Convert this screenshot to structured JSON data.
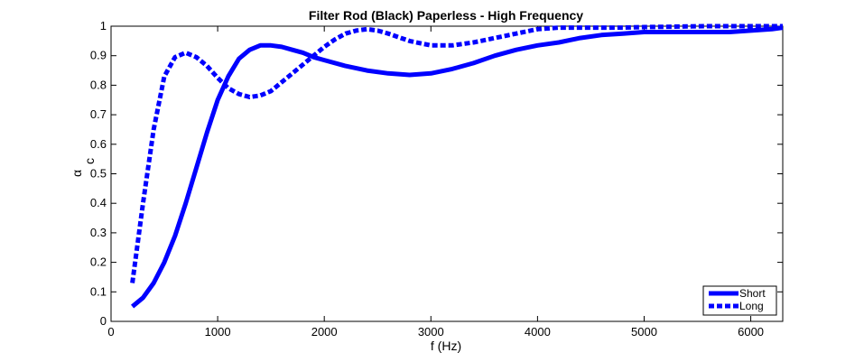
{
  "chart_data": {
    "type": "line",
    "title": "Filter Rod (Black) Paperless - High Frequency",
    "xlabel": "f (Hz)",
    "ylabel": "α",
    "ylabel_subscript": "c",
    "xlim": [
      0,
      6300
    ],
    "ylim": [
      0,
      1
    ],
    "xticks": [
      0,
      1000,
      2000,
      3000,
      4000,
      5000,
      6000
    ],
    "yticks": [
      0,
      0.1,
      0.2,
      0.3,
      0.4,
      0.5,
      0.6,
      0.7,
      0.8,
      0.9,
      1
    ],
    "grid": false,
    "legend_position": "bottom-right",
    "series": [
      {
        "name": "Short",
        "style": "solid",
        "color": "#0000ff",
        "x": [
          200,
          300,
          400,
          500,
          600,
          700,
          800,
          900,
          1000,
          1100,
          1200,
          1300,
          1400,
          1500,
          1600,
          1700,
          1800,
          1900,
          2000,
          2200,
          2400,
          2600,
          2800,
          3000,
          3200,
          3400,
          3600,
          3800,
          4000,
          4200,
          4400,
          4600,
          4800,
          5000,
          5200,
          5400,
          5600,
          5800,
          6000,
          6200,
          6300
        ],
        "y": [
          0.05,
          0.08,
          0.13,
          0.2,
          0.29,
          0.4,
          0.52,
          0.64,
          0.75,
          0.83,
          0.89,
          0.92,
          0.935,
          0.935,
          0.93,
          0.92,
          0.91,
          0.895,
          0.885,
          0.865,
          0.85,
          0.84,
          0.835,
          0.84,
          0.855,
          0.875,
          0.9,
          0.92,
          0.935,
          0.945,
          0.96,
          0.97,
          0.975,
          0.98,
          0.98,
          0.98,
          0.98,
          0.98,
          0.985,
          0.99,
          0.995
        ]
      },
      {
        "name": "Long",
        "style": "dashed",
        "color": "#0000ff",
        "x": [
          200,
          300,
          400,
          500,
          600,
          700,
          800,
          900,
          1000,
          1100,
          1200,
          1300,
          1400,
          1500,
          1600,
          1700,
          1800,
          1900,
          2000,
          2100,
          2200,
          2300,
          2400,
          2500,
          2600,
          2800,
          3000,
          3200,
          3400,
          3600,
          3800,
          4000,
          4200,
          4400,
          4600,
          4800,
          5000,
          5200,
          5400,
          5600,
          5800,
          6000,
          6200,
          6300
        ],
        "y": [
          0.13,
          0.4,
          0.65,
          0.83,
          0.895,
          0.91,
          0.895,
          0.865,
          0.825,
          0.79,
          0.77,
          0.76,
          0.765,
          0.78,
          0.81,
          0.84,
          0.87,
          0.9,
          0.93,
          0.955,
          0.975,
          0.985,
          0.99,
          0.985,
          0.975,
          0.95,
          0.935,
          0.935,
          0.945,
          0.96,
          0.975,
          0.99,
          0.995,
          0.995,
          0.995,
          0.995,
          0.997,
          0.998,
          0.999,
          1.0,
          1.0,
          1.0,
          1.0,
          1.0
        ]
      }
    ]
  }
}
